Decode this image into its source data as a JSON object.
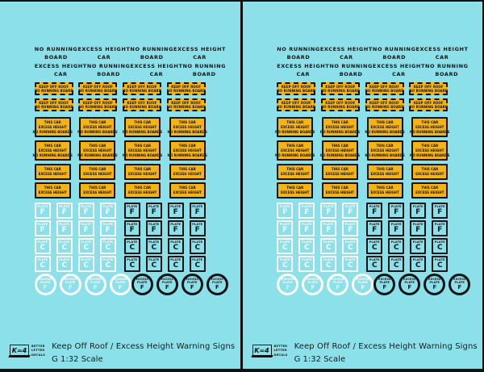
{
  "layout": {
    "panel_count": 2
  },
  "colors": {
    "background": "#8CE0EA",
    "decal_yellow": "#F5B414",
    "decal_black": "#141414",
    "decal_white": "#FFFFFF"
  },
  "panel": {
    "top_label_rows": [
      [
        {
          "l1": "NO RUNNING",
          "l2": "BOARD"
        },
        {
          "l1": "EXCESS HEIGHT",
          "l2": "CAR"
        },
        {
          "l1": "NO RUNNING",
          "l2": "BOARD"
        },
        {
          "l1": "EXCESS HEIGHT",
          "l2": "CAR"
        }
      ],
      [
        {
          "l1": "EXCESS HEIGHT",
          "l2": "CAR"
        },
        {
          "l1": "NO RUNNING",
          "l2": "BOARD"
        },
        {
          "l1": "EXCESS HEIGHT",
          "l2": "CAR"
        },
        {
          "l1": "NO RUNNING",
          "l2": "BOARD"
        }
      ]
    ],
    "keep_off_badge": {
      "line1": "KEEP OFF ROOF",
      "line2": "NO RUNNING BOARD",
      "rows": 2,
      "per_row": 4
    },
    "excess_height_3line": {
      "line1": "THIS CAR",
      "line2": "EXCESS HEIGHT",
      "line3": "NO RUNNING BOARDS",
      "rows": 2,
      "per_row": 4
    },
    "excess_height_2line": {
      "line1": "THIS CAR",
      "line2": "EXCESS HEIGHT",
      "rows": 2,
      "per_row": 4
    },
    "plate_rows": [
      {
        "label": "PLATE",
        "letter": "F",
        "white_count": 4,
        "black_count": 4
      },
      {
        "label": "PLATE",
        "letter": "F",
        "white_count": 4,
        "black_count": 4
      },
      {
        "label": "PLATE",
        "letter": "C",
        "white_count": 4,
        "black_count": 4
      },
      {
        "label": "PLATE",
        "letter": "C",
        "white_count": 4,
        "black_count": 4
      }
    ],
    "excess_plate_circle": {
      "line1": "EXCESS",
      "line2": "PLATE",
      "letter": "F",
      "white_count": 4,
      "black_count": 4
    },
    "footer": {
      "logo_mark": "K=4",
      "brand_line1": "BETTER",
      "brand_line2": "LETTER",
      "brand_line3": "DECALS",
      "title": "Keep Off Roof / Excess Height Warning Signs",
      "scale": "G 1:32 Scale"
    }
  }
}
